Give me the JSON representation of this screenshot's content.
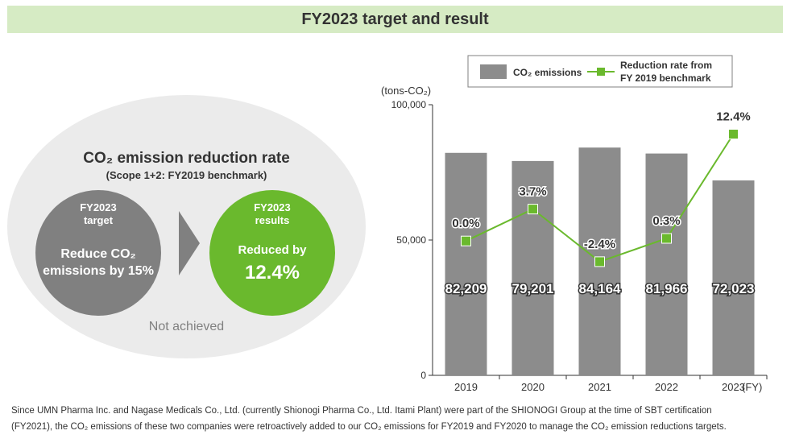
{
  "page": {
    "title": "FY2023 target and result"
  },
  "summary": {
    "heading": "CO₂ emission reduction rate",
    "subheading": "(Scope 1+2: FY2019 benchmark)",
    "target": {
      "label_line1": "FY2023",
      "label_line2": "target",
      "text_line1": "Reduce CO₂",
      "text_line2": "emissions by 15%"
    },
    "result": {
      "label_line1": "FY2023",
      "label_line2": "results",
      "text_line1": "Reduced by",
      "value": "12.4%"
    },
    "status": "Not achieved"
  },
  "colors": {
    "bar": "#8c8c8c",
    "line": "#6ab92d",
    "header_bg": "#d6ebc4",
    "ellipse_bg": "#ebebeb",
    "target_circle": "#808080",
    "result_circle": "#6ab92d"
  },
  "chart_data": {
    "type": "bar+line",
    "title": "",
    "ylabel": "(tons-CO₂)",
    "xlabel": "(FY)",
    "categories": [
      "2019",
      "2020",
      "2021",
      "2022",
      "2023"
    ],
    "ylim": [
      0,
      100000
    ],
    "yticks": [
      {
        "value": 0,
        "label": "0"
      },
      {
        "value": 50000,
        "label": "50,000"
      },
      {
        "value": 100000,
        "label": "100,000"
      }
    ],
    "series": [
      {
        "name": "CO₂ emissions",
        "type": "bar",
        "values": [
          82209,
          79201,
          84164,
          81966,
          72023
        ],
        "labels": [
          "82,209",
          "79,201",
          "84,164",
          "81,966",
          "72,023"
        ]
      },
      {
        "name": "Reduction rate from FY 2019 benchmark",
        "type": "line",
        "values": [
          0.0,
          3.7,
          -2.4,
          0.3,
          12.4
        ],
        "labels": [
          "0.0%",
          "3.7%",
          "-2.4%",
          "0.3%",
          "12.4%"
        ]
      }
    ],
    "legend": {
      "bar_label": "CO₂ emissions",
      "line_label_line1": "Reduction rate from",
      "line_label_line2": "FY 2019 benchmark",
      "position": "top"
    }
  },
  "footnote": {
    "line1": "Since UMN Pharma Inc. and Nagase Medicals Co., Ltd. (currently Shionogi Pharma Co., Ltd. Itami Plant) were part of the SHIONOGI Group at the time of SBT certification",
    "line2": "(FY2021), the CO₂ emissions of these two companies were retroactively added to our CO₂ emissions for FY2019 and FY2020 to manage the CO₂ emission reductions targets."
  }
}
